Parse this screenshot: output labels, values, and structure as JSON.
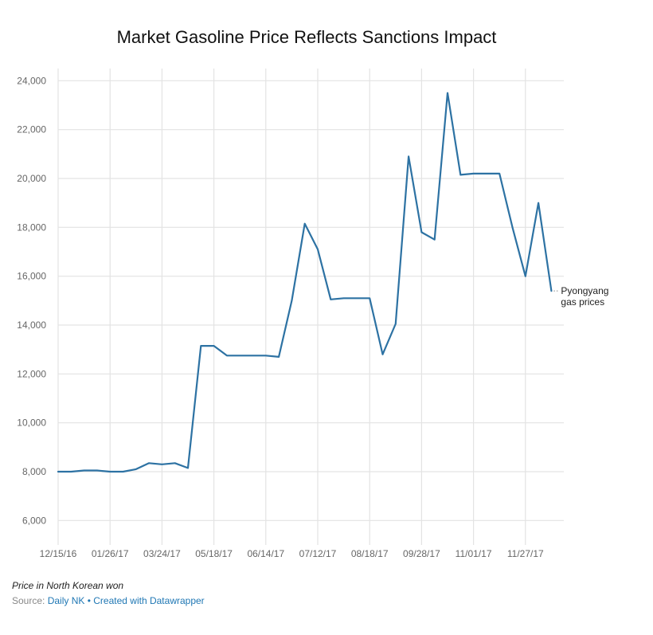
{
  "chart_data": {
    "type": "line",
    "title": "Market Gasoline Price Reflects Sanctions Impact",
    "x_tick_labels": [
      "12/15/16",
      "01/26/17",
      "03/24/17",
      "05/18/17",
      "06/14/17",
      "07/12/17",
      "08/18/17",
      "09/28/17",
      "11/01/17",
      "11/27/17"
    ],
    "ylim": [
      5000,
      24500
    ],
    "y_ticks": [
      6000,
      8000,
      10000,
      12000,
      14000,
      16000,
      18000,
      20000,
      22000,
      24000
    ],
    "y_tick_labels": [
      "6,000",
      "8,000",
      "10,000",
      "12,000",
      "14,000",
      "16,000",
      "18,000",
      "20,000",
      "22,000",
      "24,000"
    ],
    "grid": true,
    "series": [
      {
        "name": "Pyongyang gas prices",
        "label_lines": [
          "Pyongyang",
          "gas prices"
        ],
        "color": "#2d72a3",
        "values": [
          8000,
          8000,
          8050,
          8050,
          8000,
          8000,
          8100,
          8350,
          8300,
          8350,
          8150,
          13150,
          13150,
          12750,
          12750,
          12750,
          12750,
          12700,
          15000,
          18150,
          17100,
          15050,
          15100,
          15100,
          15100,
          12800,
          14050,
          20900,
          17800,
          17500,
          23500,
          20150,
          20200,
          20200,
          20200,
          18000,
          16000,
          19000,
          15400
        ]
      }
    ]
  },
  "footer": {
    "note": "Price in North Korean won",
    "source_prefix": "Source: ",
    "source_name": "Daily NK",
    "separator": " • ",
    "credit": "Created with Datawrapper"
  }
}
